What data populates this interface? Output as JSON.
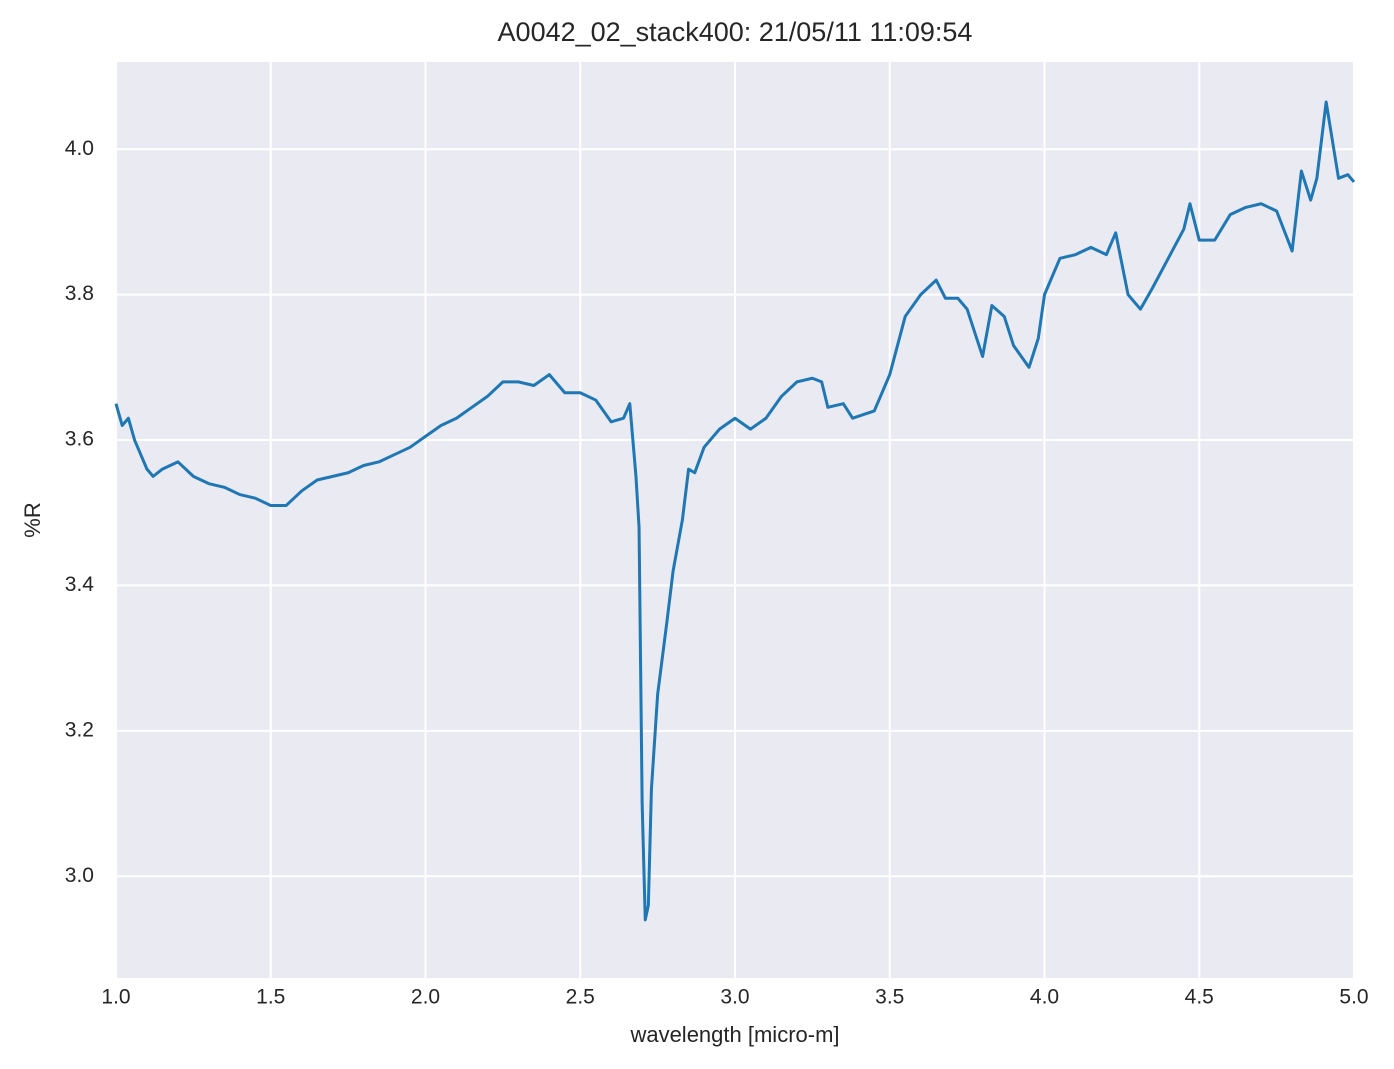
{
  "chart_data": {
    "type": "line",
    "title": "A0042_02_stack400:  21/05/11 11:09:54",
    "xlabel": "wavelength [micro-m]",
    "ylabel": "%R",
    "color": "#1f77b4",
    "grid": true,
    "xlim": [
      1.0,
      5.0
    ],
    "ylim": [
      2.86,
      4.12
    ],
    "xticks": [
      {
        "value": 1,
        "label": "1.0"
      },
      1.5,
      {
        "value": 2,
        "label": "2.0"
      },
      2.5,
      {
        "value": 3,
        "label": "3.0"
      },
      3.5,
      {
        "value": 4,
        "label": "4.0"
      },
      4.5,
      {
        "value": 5,
        "label": "5.0"
      }
    ],
    "yticks": [
      {
        "value": 3,
        "label": "3.0"
      },
      3.2,
      3.4,
      3.6,
      3.8,
      {
        "value": 4,
        "label": "4.0"
      }
    ],
    "x": [
      1.0,
      1.02,
      1.04,
      1.06,
      1.08,
      1.1,
      1.12,
      1.15,
      1.2,
      1.25,
      1.3,
      1.35,
      1.4,
      1.45,
      1.5,
      1.55,
      1.6,
      1.65,
      1.7,
      1.75,
      1.8,
      1.85,
      1.9,
      1.95,
      2.0,
      2.05,
      2.1,
      2.15,
      2.2,
      2.25,
      2.3,
      2.35,
      2.4,
      2.45,
      2.5,
      2.55,
      2.6,
      2.64,
      2.66,
      2.68,
      2.69,
      2.7,
      2.71,
      2.72,
      2.73,
      2.75,
      2.78,
      2.8,
      2.83,
      2.85,
      2.87,
      2.9,
      2.95,
      3.0,
      3.05,
      3.1,
      3.15,
      3.2,
      3.25,
      3.28,
      3.3,
      3.35,
      3.38,
      3.45,
      3.5,
      3.55,
      3.6,
      3.65,
      3.68,
      3.72,
      3.75,
      3.8,
      3.83,
      3.87,
      3.9,
      3.95,
      3.98,
      4.0,
      4.05,
      4.1,
      4.15,
      4.2,
      4.23,
      4.27,
      4.31,
      4.35,
      4.4,
      4.45,
      4.47,
      4.5,
      4.55,
      4.6,
      4.65,
      4.7,
      4.75,
      4.8,
      4.83,
      4.86,
      4.88,
      4.91,
      4.95,
      4.98,
      5.0
    ],
    "values": [
      3.65,
      3.62,
      3.63,
      3.6,
      3.58,
      3.56,
      3.55,
      3.56,
      3.57,
      3.55,
      3.54,
      3.535,
      3.525,
      3.52,
      3.51,
      3.51,
      3.53,
      3.545,
      3.55,
      3.555,
      3.565,
      3.57,
      3.58,
      3.59,
      3.605,
      3.62,
      3.63,
      3.645,
      3.66,
      3.68,
      3.68,
      3.675,
      3.69,
      3.665,
      3.665,
      3.655,
      3.625,
      3.63,
      3.65,
      3.55,
      3.48,
      3.1,
      2.94,
      2.96,
      3.12,
      3.25,
      3.35,
      3.42,
      3.49,
      3.56,
      3.555,
      3.59,
      3.615,
      3.63,
      3.615,
      3.63,
      3.66,
      3.68,
      3.685,
      3.68,
      3.645,
      3.65,
      3.63,
      3.64,
      3.69,
      3.77,
      3.8,
      3.82,
      3.795,
      3.795,
      3.78,
      3.715,
      3.785,
      3.77,
      3.73,
      3.7,
      3.74,
      3.8,
      3.85,
      3.855,
      3.865,
      3.855,
      3.885,
      3.8,
      3.78,
      3.81,
      3.85,
      3.89,
      3.925,
      3.875,
      3.875,
      3.91,
      3.92,
      3.925,
      3.915,
      3.86,
      3.97,
      3.93,
      3.96,
      4.065,
      3.96,
      3.965,
      3.955
    ]
  }
}
